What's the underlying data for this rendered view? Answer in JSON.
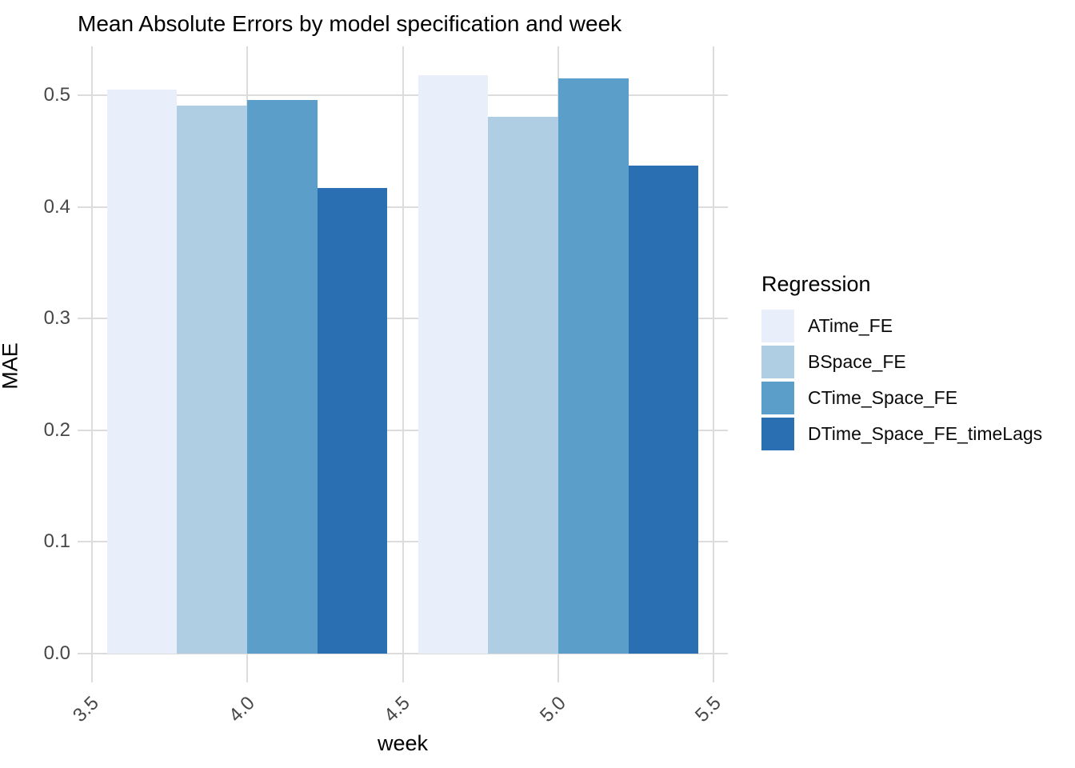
{
  "chart_data": {
    "type": "bar",
    "title": "Mean Absolute Errors by model specification and week",
    "xlabel": "week",
    "ylabel": "MAE",
    "legend_title": "Regression",
    "legend_position": "right",
    "grid": "major-only",
    "background": "#ffffff",
    "gridline_color": "#dcdcdc",
    "axis_text_color": "#474747",
    "categories": [
      4,
      5
    ],
    "bar_width_weeks": 0.225,
    "group_width_weeks": 0.9,
    "x_ticks": [
      {
        "value": 3.5,
        "label": "3.5"
      },
      {
        "value": 4.0,
        "label": "4.0"
      },
      {
        "value": 4.5,
        "label": "4.5"
      },
      {
        "value": 5.0,
        "label": "5.0"
      },
      {
        "value": 5.5,
        "label": "5.5"
      }
    ],
    "y_ticks": [
      {
        "value": 0.0,
        "label": "0.0"
      },
      {
        "value": 0.1,
        "label": "0.1"
      },
      {
        "value": 0.2,
        "label": "0.2"
      },
      {
        "value": 0.3,
        "label": "0.3"
      },
      {
        "value": 0.4,
        "label": "0.4"
      },
      {
        "value": 0.5,
        "label": "0.5"
      }
    ],
    "xlim": [
      3.455,
      5.545
    ],
    "ylim": [
      -0.026,
      0.544
    ],
    "series": [
      {
        "name": "ATime_FE",
        "color": "#E8EFFA",
        "values": [
          0.505,
          0.518
        ]
      },
      {
        "name": "BSpace_FE",
        "color": "#AFCDE3",
        "values": [
          0.491,
          0.481
        ]
      },
      {
        "name": "CTime_Space_FE",
        "color": "#5A9EC9",
        "values": [
          0.496,
          0.515
        ]
      },
      {
        "name": "DTime_Space_FE_timeLags",
        "color": "#2A6FB2",
        "values": [
          0.417,
          0.437
        ]
      }
    ]
  }
}
